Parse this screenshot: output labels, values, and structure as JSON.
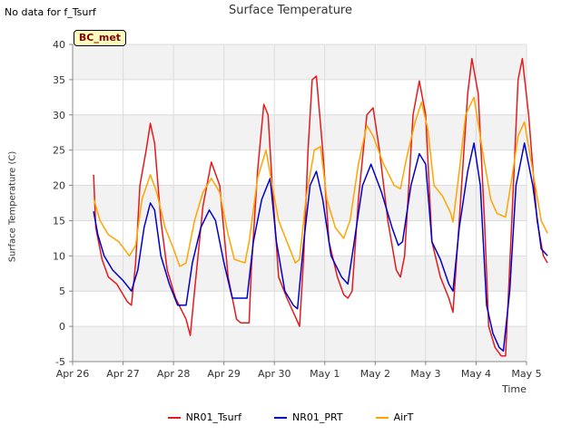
{
  "header": {
    "nodata_text": "No data for f_Tsurf",
    "badge_text": "BC_met"
  },
  "chart_data": {
    "type": "line",
    "title": "Surface Temperature",
    "xlabel": "Time",
    "ylabel": "Surface Temperature (C)",
    "ylim": [
      -5,
      40
    ],
    "yticks": [
      -5,
      0,
      5,
      10,
      15,
      20,
      25,
      30,
      35,
      40
    ],
    "xlim": [
      "2024-04-26",
      "2024-05-05"
    ],
    "xticks": [
      {
        "date": "2024-04-26",
        "label": "Apr 26"
      },
      {
        "date": "2024-04-27",
        "label": "Apr 27"
      },
      {
        "date": "2024-04-28",
        "label": "Apr 28"
      },
      {
        "date": "2024-04-29",
        "label": "Apr 29"
      },
      {
        "date": "2024-04-30",
        "label": "Apr 30"
      },
      {
        "date": "2024-05-01",
        "label": "May 1"
      },
      {
        "date": "2024-05-02",
        "label": "May 2"
      },
      {
        "date": "2024-05-03",
        "label": "May 3"
      },
      {
        "date": "2024-05-04",
        "label": "May 4"
      },
      {
        "date": "2024-05-05",
        "label": "May 5"
      }
    ],
    "grid": true,
    "legend_position": "bottom",
    "series": [
      {
        "name": "NR01_Tsurf",
        "color": "#e41a1c",
        "points": [
          [
            "2024-04-26T10:00",
            21.5
          ],
          [
            "2024-04-26T11:00",
            14.0
          ],
          [
            "2024-04-26T14:00",
            9.5
          ],
          [
            "2024-04-26T17:00",
            7.0
          ],
          [
            "2024-04-26T21:00",
            6.0
          ],
          [
            "2024-04-27T02:00",
            3.5
          ],
          [
            "2024-04-27T04:00",
            3.0
          ],
          [
            "2024-04-27T06:00",
            9.0
          ],
          [
            "2024-04-27T08:00",
            20.0
          ],
          [
            "2024-04-27T11:00",
            25.0
          ],
          [
            "2024-04-27T13:00",
            28.8
          ],
          [
            "2024-04-27T15:00",
            26.0
          ],
          [
            "2024-04-27T18:00",
            15.0
          ],
          [
            "2024-04-27T21:00",
            8.0
          ],
          [
            "2024-04-28T01:00",
            4.0
          ],
          [
            "2024-04-28T06:00",
            1.0
          ],
          [
            "2024-04-28T08:00",
            -1.3
          ],
          [
            "2024-04-28T10:00",
            5.0
          ],
          [
            "2024-04-28T14:00",
            17.0
          ],
          [
            "2024-04-28T18:00",
            23.3
          ],
          [
            "2024-04-28T22:00",
            20.0
          ],
          [
            "2024-04-29T02:00",
            7.0
          ],
          [
            "2024-04-29T06:00",
            1.0
          ],
          [
            "2024-04-29T08:00",
            0.5
          ],
          [
            "2024-04-29T12:00",
            0.5
          ],
          [
            "2024-04-29T13:00",
            8.0
          ],
          [
            "2024-04-29T16:00",
            22.0
          ],
          [
            "2024-04-29T19:00",
            31.5
          ],
          [
            "2024-04-29T21:00",
            30.0
          ],
          [
            "2024-04-29T23:00",
            20.0
          ],
          [
            "2024-04-30T02:00",
            7.0
          ],
          [
            "2024-04-30T06:00",
            4.0
          ],
          [
            "2024-04-30T09:00",
            2.0
          ],
          [
            "2024-04-30T12:00",
            0.0
          ],
          [
            "2024-04-30T14:00",
            10.0
          ],
          [
            "2024-04-30T16:00",
            25.0
          ],
          [
            "2024-04-30T18:00",
            35.0
          ],
          [
            "2024-04-30T20:00",
            35.5
          ],
          [
            "2024-04-30T23:00",
            25.0
          ],
          [
            "2024-05-01T02:00",
            12.0
          ],
          [
            "2024-05-01T06:00",
            7.0
          ],
          [
            "2024-05-01T09:00",
            4.5
          ],
          [
            "2024-05-01T11:00",
            4.0
          ],
          [
            "2024-05-01T13:00",
            5.0
          ],
          [
            "2024-05-01T16:00",
            18.0
          ],
          [
            "2024-05-01T20:00",
            30.0
          ],
          [
            "2024-05-01T23:00",
            31.0
          ],
          [
            "2024-05-02T02:00",
            25.0
          ],
          [
            "2024-05-02T06:00",
            15.0
          ],
          [
            "2024-05-02T10:00",
            8.0
          ],
          [
            "2024-05-02T12:00",
            7.0
          ],
          [
            "2024-05-02T14:00",
            10.0
          ],
          [
            "2024-05-02T18:00",
            30.0
          ],
          [
            "2024-05-02T21:00",
            34.8
          ],
          [
            "2024-05-03T00:00",
            30.0
          ],
          [
            "2024-05-03T03:00",
            12.0
          ],
          [
            "2024-05-03T07:00",
            7.0
          ],
          [
            "2024-05-03T11:00",
            4.0
          ],
          [
            "2024-05-03T13:00",
            2.0
          ],
          [
            "2024-05-03T16:00",
            15.0
          ],
          [
            "2024-05-03T20:00",
            33.0
          ],
          [
            "2024-05-03T22:00",
            38.0
          ],
          [
            "2024-05-04T01:00",
            33.0
          ],
          [
            "2024-05-04T04:00",
            15.0
          ],
          [
            "2024-05-04T06:00",
            0.0
          ],
          [
            "2024-05-04T09:00",
            -3.0
          ],
          [
            "2024-05-04T12:00",
            -4.2
          ],
          [
            "2024-05-04T14:00",
            -4.2
          ],
          [
            "2024-05-04T17:00",
            15.0
          ],
          [
            "2024-05-04T20:00",
            35.0
          ],
          [
            "2024-05-04T22:00",
            38.0
          ],
          [
            "2024-05-05T01:00",
            30.0
          ],
          [
            "2024-05-05T05:00",
            15.0
          ],
          [
            "2024-05-05T08:00",
            10.0
          ],
          [
            "2024-05-05T10:00",
            9.0
          ]
        ]
      },
      {
        "name": "NR01_PRT",
        "color": "#0000cc",
        "points": [
          [
            "2024-04-26T10:00",
            16.3
          ],
          [
            "2024-04-26T12:00",
            13.0
          ],
          [
            "2024-04-26T15:00",
            10.0
          ],
          [
            "2024-04-26T19:00",
            8.0
          ],
          [
            "2024-04-27T00:00",
            6.5
          ],
          [
            "2024-04-27T04:00",
            5.0
          ],
          [
            "2024-04-27T07:00",
            8.0
          ],
          [
            "2024-04-27T10:00",
            14.0
          ],
          [
            "2024-04-27T13:00",
            17.5
          ],
          [
            "2024-04-27T15:00",
            16.5
          ],
          [
            "2024-04-27T18:00",
            10.0
          ],
          [
            "2024-04-27T22:00",
            6.0
          ],
          [
            "2024-04-28T02:00",
            3.0
          ],
          [
            "2024-04-28T06:00",
            3.0
          ],
          [
            "2024-04-28T09:00",
            9.0
          ],
          [
            "2024-04-28T13:00",
            14.0
          ],
          [
            "2024-04-28T17:00",
            16.5
          ],
          [
            "2024-04-28T20:00",
            15.0
          ],
          [
            "2024-04-29T00:00",
            9.0
          ],
          [
            "2024-04-29T04:00",
            4.0
          ],
          [
            "2024-04-29T08:00",
            4.0
          ],
          [
            "2024-04-29T11:00",
            4.0
          ],
          [
            "2024-04-29T14:00",
            12.0
          ],
          [
            "2024-04-29T18:00",
            18.0
          ],
          [
            "2024-04-29T22:00",
            21.0
          ],
          [
            "2024-04-30T01:00",
            12.0
          ],
          [
            "2024-04-30T05:00",
            5.0
          ],
          [
            "2024-04-30T09:00",
            3.0
          ],
          [
            "2024-04-30T11:00",
            2.5
          ],
          [
            "2024-04-30T14:00",
            12.0
          ],
          [
            "2024-04-30T17:00",
            20.0
          ],
          [
            "2024-04-30T20:00",
            22.0
          ],
          [
            "2024-04-30T23:00",
            18.0
          ],
          [
            "2024-05-01T03:00",
            10.0
          ],
          [
            "2024-05-01T08:00",
            7.0
          ],
          [
            "2024-05-01T11:00",
            6.0
          ],
          [
            "2024-05-01T14:00",
            12.0
          ],
          [
            "2024-05-01T18:00",
            20.0
          ],
          [
            "2024-05-01T22:00",
            23.0
          ],
          [
            "2024-05-02T03:00",
            19.0
          ],
          [
            "2024-05-02T08:00",
            14.0
          ],
          [
            "2024-05-02T11:00",
            11.5
          ],
          [
            "2024-05-02T13:00",
            12.0
          ],
          [
            "2024-05-02T17:00",
            20.0
          ],
          [
            "2024-05-02T21:00",
            24.5
          ],
          [
            "2024-05-03T00:00",
            23.0
          ],
          [
            "2024-05-03T03:00",
            12.0
          ],
          [
            "2024-05-03T07:00",
            9.5
          ],
          [
            "2024-05-03T11:00",
            6.0
          ],
          [
            "2024-05-03T13:00",
            5.0
          ],
          [
            "2024-05-03T16:00",
            14.0
          ],
          [
            "2024-05-03T20:00",
            22.0
          ],
          [
            "2024-05-03T23:00",
            26.0
          ],
          [
            "2024-05-04T02:00",
            20.0
          ],
          [
            "2024-05-04T05:00",
            3.0
          ],
          [
            "2024-05-04T08:00",
            -1.0
          ],
          [
            "2024-05-04T11:00",
            -3.0
          ],
          [
            "2024-05-04T13:00",
            -3.5
          ],
          [
            "2024-05-04T16:00",
            5.0
          ],
          [
            "2024-05-04T19:00",
            20.0
          ],
          [
            "2024-05-04T23:00",
            26.0
          ],
          [
            "2024-05-05T03:00",
            20.0
          ],
          [
            "2024-05-05T07:00",
            11.0
          ],
          [
            "2024-05-05T10:00",
            10.0
          ]
        ]
      },
      {
        "name": "AirT",
        "color": "#ffa500",
        "points": [
          [
            "2024-04-26T10:00",
            18.2
          ],
          [
            "2024-04-26T13:00",
            15.0
          ],
          [
            "2024-04-26T17:00",
            13.0
          ],
          [
            "2024-04-26T22:00",
            12.0
          ],
          [
            "2024-04-27T03:00",
            10.0
          ],
          [
            "2024-04-27T06:00",
            11.5
          ],
          [
            "2024-04-27T09:00",
            18.0
          ],
          [
            "2024-04-27T13:00",
            21.5
          ],
          [
            "2024-04-27T16:00",
            19.0
          ],
          [
            "2024-04-27T20:00",
            14.0
          ],
          [
            "2024-04-28T00:00",
            11.0
          ],
          [
            "2024-04-28T03:00",
            8.5
          ],
          [
            "2024-04-28T06:00",
            9.0
          ],
          [
            "2024-04-28T10:00",
            15.0
          ],
          [
            "2024-04-28T14:00",
            19.0
          ],
          [
            "2024-04-28T18:00",
            21.0
          ],
          [
            "2024-04-28T22:00",
            19.0
          ],
          [
            "2024-04-29T02:00",
            13.0
          ],
          [
            "2024-04-29T05:00",
            9.5
          ],
          [
            "2024-04-29T10:00",
            9.0
          ],
          [
            "2024-04-29T12:00",
            12.0
          ],
          [
            "2024-04-29T16:00",
            21.0
          ],
          [
            "2024-04-29T20:00",
            25.0
          ],
          [
            "2024-04-29T23:00",
            20.0
          ],
          [
            "2024-04-30T02:00",
            15.0
          ],
          [
            "2024-04-30T06:00",
            12.0
          ],
          [
            "2024-04-30T10:00",
            9.0
          ],
          [
            "2024-04-30T12:00",
            9.5
          ],
          [
            "2024-04-30T15:00",
            18.0
          ],
          [
            "2024-04-30T19:00",
            25.0
          ],
          [
            "2024-04-30T22:00",
            25.5
          ],
          [
            "2024-05-01T01:00",
            18.0
          ],
          [
            "2024-05-01T05:00",
            14.0
          ],
          [
            "2024-05-01T09:00",
            12.5
          ],
          [
            "2024-05-01T12:00",
            15.0
          ],
          [
            "2024-05-01T16:00",
            23.0
          ],
          [
            "2024-05-01T20:00",
            28.5
          ],
          [
            "2024-05-01T23:00",
            27.0
          ],
          [
            "2024-05-02T04:00",
            23.0
          ],
          [
            "2024-05-02T09:00",
            20.0
          ],
          [
            "2024-05-02T12:00",
            19.5
          ],
          [
            "2024-05-02T15:00",
            24.0
          ],
          [
            "2024-05-02T19:00",
            29.0
          ],
          [
            "2024-05-02T22:00",
            31.8
          ],
          [
            "2024-05-03T01:00",
            28.0
          ],
          [
            "2024-05-03T04:00",
            20.0
          ],
          [
            "2024-05-03T08:00",
            18.5
          ],
          [
            "2024-05-03T12:00",
            16.0
          ],
          [
            "2024-05-03T13:00",
            14.8
          ],
          [
            "2024-05-03T16:00",
            22.0
          ],
          [
            "2024-05-03T19:00",
            30.0
          ],
          [
            "2024-05-03T23:00",
            32.5
          ],
          [
            "2024-05-04T03:00",
            25.0
          ],
          [
            "2024-05-04T07:00",
            18.0
          ],
          [
            "2024-05-04T10:00",
            16.0
          ],
          [
            "2024-05-04T14:00",
            15.5
          ],
          [
            "2024-05-04T17:00",
            21.0
          ],
          [
            "2024-05-04T20:00",
            27.0
          ],
          [
            "2024-05-04T23:00",
            29.0
          ],
          [
            "2024-05-05T03:00",
            22.0
          ],
          [
            "2024-05-05T07:00",
            15.0
          ],
          [
            "2024-05-05T10:00",
            13.2
          ]
        ]
      }
    ]
  }
}
